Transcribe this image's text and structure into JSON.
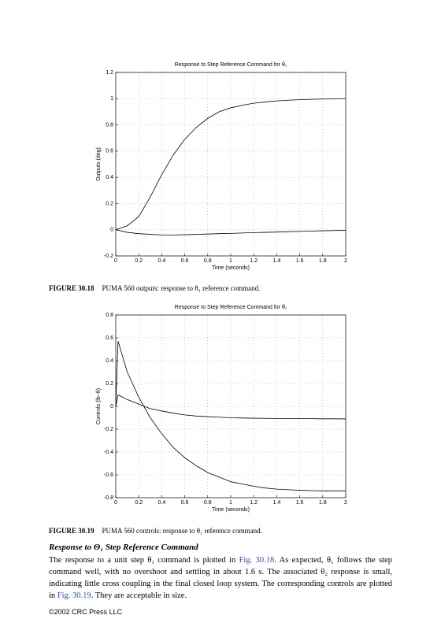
{
  "chart_data": [
    {
      "type": "line",
      "title": "Response to Step Reference Command for θ₁",
      "xlabel": "Time (seconds)",
      "ylabel": "Outputs (deg)",
      "x": [
        0,
        0.1,
        0.2,
        0.3,
        0.4,
        0.5,
        0.6,
        0.7,
        0.8,
        0.9,
        1.0,
        1.1,
        1.2,
        1.3,
        1.4,
        1.5,
        1.6,
        1.7,
        1.8,
        1.9,
        2.0
      ],
      "series": [
        {
          "color": "#000000",
          "values": [
            0,
            0.03,
            0.1,
            0.25,
            0.42,
            0.57,
            0.69,
            0.78,
            0.85,
            0.9,
            0.93,
            0.95,
            0.965,
            0.975,
            0.983,
            0.988,
            0.992,
            0.995,
            0.997,
            0.998,
            1.0
          ]
        },
        {
          "color": "#000000",
          "values": [
            0,
            -0.02,
            -0.03,
            -0.035,
            -0.04,
            -0.04,
            -0.038,
            -0.035,
            -0.033,
            -0.03,
            -0.028,
            -0.025,
            -0.022,
            -0.02,
            -0.018,
            -0.015,
            -0.013,
            -0.01,
            -0.008,
            -0.006,
            -0.005
          ]
        }
      ],
      "xlim": [
        0,
        2
      ],
      "xticks": [
        0,
        0.2,
        0.4,
        0.6,
        0.8,
        1,
        1.2,
        1.4,
        1.6,
        1.8,
        2
      ],
      "ylim": [
        -0.2,
        1.2
      ],
      "yticks": [
        -0.2,
        0,
        0.2,
        0.4,
        0.6,
        0.8,
        1,
        1.2
      ],
      "grid": true
    },
    {
      "type": "line",
      "title": "Response to Step Reference Command for θ₁",
      "xlabel": "Time (seconds)",
      "ylabel": "Controls (lb−ft)",
      "x": [
        0,
        0.02,
        0.1,
        0.2,
        0.3,
        0.4,
        0.5,
        0.6,
        0.7,
        0.8,
        0.9,
        1.0,
        1.1,
        1.2,
        1.3,
        1.4,
        1.5,
        1.6,
        1.7,
        1.8,
        1.9,
        2.0
      ],
      "series": [
        {
          "color": "#000000",
          "values": [
            0,
            0.57,
            0.3,
            0.08,
            -0.1,
            -0.24,
            -0.36,
            -0.45,
            -0.52,
            -0.58,
            -0.62,
            -0.66,
            -0.68,
            -0.7,
            -0.715,
            -0.725,
            -0.73,
            -0.735,
            -0.738,
            -0.74,
            -0.74,
            -0.74
          ]
        },
        {
          "color": "#000000",
          "values": [
            0,
            0.1,
            0.06,
            0.02,
            -0.02,
            -0.04,
            -0.06,
            -0.075,
            -0.085,
            -0.09,
            -0.095,
            -0.1,
            -0.102,
            -0.104,
            -0.105,
            -0.106,
            -0.107,
            -0.108,
            -0.108,
            -0.109,
            -0.109,
            -0.11
          ]
        }
      ],
      "xlim": [
        0,
        2
      ],
      "xticks": [
        0,
        0.2,
        0.4,
        0.6,
        0.8,
        1,
        1.2,
        1.4,
        1.6,
        1.8,
        2
      ],
      "ylim": [
        -0.8,
        0.8
      ],
      "yticks": [
        -0.8,
        -0.6,
        -0.4,
        -0.2,
        0,
        0.2,
        0.4,
        0.6,
        0.8
      ],
      "grid": true
    }
  ],
  "captions": [
    {
      "label": "FIGURE 30.18",
      "text": "PUMA 560 outputs: response to θ₁ reference command."
    },
    {
      "label": "FIGURE 30.19",
      "text": "PUMA 560 controls: response to θ₁ reference command."
    }
  ],
  "section": {
    "heading": "Response to Θ₁ Step Reference Command",
    "body": [
      "The response to a unit step θ₁ command is plotted in ",
      "Fig. 30.18",
      ". As expected, θ₁ follows the step command well, with no overshoot and settling in about 1.6 s. The associated θ₂ response is small, indicating little cross coupling in the final closed loop system. The corresponding controls are plotted in ",
      "Fig. 30.19",
      ". They are acceptable in size."
    ]
  },
  "footer": "©2002 CRC Press LLC"
}
